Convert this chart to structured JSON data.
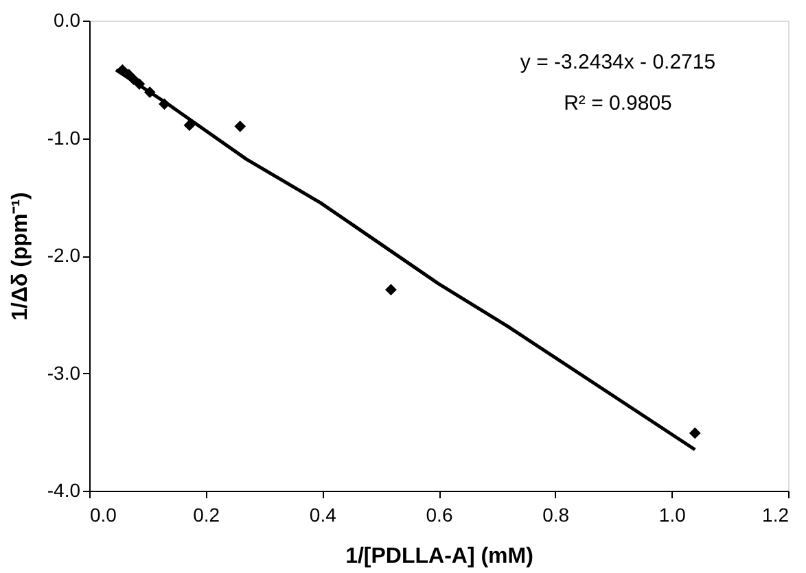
{
  "chart_data": {
    "type": "scatter",
    "xlabel": "1/[PDLLA-A] (mM)",
    "ylabel": "1/Δδ (ppm⁻¹)",
    "xlim": [
      0,
      1.2
    ],
    "xticks": [
      {
        "value": 0,
        "label": "0.0"
      },
      0.2,
      0.4,
      0.6,
      0.8,
      {
        "value": 1,
        "label": "1.0"
      },
      1.2
    ],
    "ylim": [
      -4,
      0
    ],
    "yticks": [
      {
        "value": -4,
        "label": "-4.0"
      },
      {
        "value": -3,
        "label": "-3.0"
      },
      {
        "value": -2,
        "label": "-2.0"
      },
      {
        "value": -1,
        "label": "-1.0"
      },
      {
        "value": 0,
        "label": "0.0"
      }
    ],
    "grid": false,
    "marker": "diamond",
    "annotations": [
      "y = -3.2434x - 0.2715",
      "R² = 0.9805"
    ],
    "series": [
      {
        "color": "#000000",
        "x": [
          0.057,
          0.068,
          0.076,
          0.086,
          0.104,
          0.129,
          0.172,
          0.259,
          0.518,
          1.04
        ],
        "values": [
          -0.42,
          -0.46,
          -0.5,
          -0.54,
          -0.61,
          -0.71,
          -0.89,
          -0.9,
          -2.29,
          -3.51
        ]
      },
      {
        "type": "line",
        "color": "#000000",
        "line_style": "solid",
        "marker": "none",
        "x": [
          0.046,
          0.135,
          0.27,
          0.397,
          0.6,
          0.718,
          1.04
        ],
        "values": [
          -0.42,
          -0.71,
          -1.18,
          -1.55,
          -2.24,
          -2.6,
          -3.65
        ]
      }
    ]
  }
}
